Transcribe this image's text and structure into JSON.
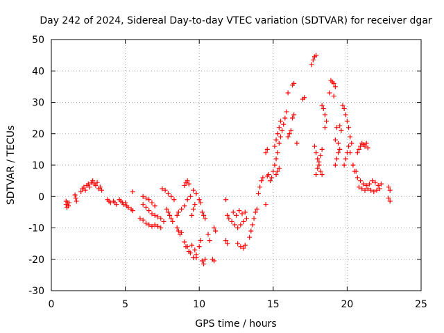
{
  "chart_data": {
    "type": "scatter",
    "title": "Day 242 of 2024, Sidereal Day-to-day VTEC variation (SDTVAR) for receiver dgar",
    "xlabel": "GPS time / hours",
    "ylabel": "SDTVAR / TECUs",
    "xlim": [
      0,
      25
    ],
    "ylim": [
      -30,
      50
    ],
    "x_ticks": [
      0,
      5,
      10,
      15,
      20,
      25
    ],
    "y_ticks": [
      -30,
      -20,
      -10,
      0,
      10,
      20,
      30,
      40,
      50
    ],
    "grid": true,
    "marker": "+",
    "marker_color": "#ff0000",
    "series": [
      {
        "name": "SDTVAR",
        "points": [
          [
            1.0,
            -1.5
          ],
          [
            1.0,
            -2.5
          ],
          [
            1.05,
            -3.5
          ],
          [
            1.1,
            -2.0
          ],
          [
            1.15,
            -3.0
          ],
          [
            1.2,
            -2.0
          ],
          [
            1.6,
            0.5
          ],
          [
            1.65,
            -0.5
          ],
          [
            1.7,
            -1.5
          ],
          [
            2.0,
            1.5
          ],
          [
            2.1,
            2.5
          ],
          [
            2.2,
            3.0
          ],
          [
            2.3,
            2.0
          ],
          [
            2.4,
            3.5
          ],
          [
            2.5,
            4.0
          ],
          [
            2.6,
            3.0
          ],
          [
            2.7,
            4.5
          ],
          [
            2.8,
            5.0
          ],
          [
            2.9,
            4.0
          ],
          [
            3.0,
            3.5
          ],
          [
            3.1,
            4.5
          ],
          [
            3.2,
            2.5
          ],
          [
            3.3,
            3.0
          ],
          [
            3.4,
            2.0
          ],
          [
            3.8,
            -1.0
          ],
          [
            3.9,
            -1.5
          ],
          [
            4.0,
            -2.0
          ],
          [
            4.2,
            -1.5
          ],
          [
            4.3,
            -2.0
          ],
          [
            4.4,
            -2.5
          ],
          [
            4.6,
            -1.0
          ],
          [
            4.7,
            -1.5
          ],
          [
            4.8,
            -2.0
          ],
          [
            4.9,
            -2.5
          ],
          [
            5.0,
            -2.0
          ],
          [
            5.1,
            -3.0
          ],
          [
            5.2,
            -3.5
          ],
          [
            5.4,
            -4.0
          ],
          [
            5.5,
            -4.5
          ],
          [
            5.5,
            1.5
          ],
          [
            6.0,
            -7.0
          ],
          [
            6.2,
            -7.5
          ],
          [
            6.4,
            -8.5
          ],
          [
            6.6,
            -9.0
          ],
          [
            6.8,
            -9.5
          ],
          [
            7.0,
            -9.0
          ],
          [
            7.2,
            -9.5
          ],
          [
            7.4,
            -10.0
          ],
          [
            6.2,
            -2.5
          ],
          [
            6.4,
            -3.5
          ],
          [
            6.6,
            -4.5
          ],
          [
            6.8,
            -5.5
          ],
          [
            7.0,
            -6.0
          ],
          [
            7.2,
            -6.5
          ],
          [
            7.4,
            -7.0
          ],
          [
            7.6,
            -8.0
          ],
          [
            6.2,
            0.0
          ],
          [
            6.4,
            -0.5
          ],
          [
            6.6,
            -1.0
          ],
          [
            6.8,
            -2.0
          ],
          [
            7.0,
            -3.0
          ],
          [
            7.5,
            2.5
          ],
          [
            7.7,
            2.0
          ],
          [
            7.9,
            1.0
          ],
          [
            8.1,
            0.0
          ],
          [
            8.3,
            -1.0
          ],
          [
            7.8,
            -4.0
          ],
          [
            7.9,
            -5.0
          ],
          [
            8.0,
            -6.0
          ],
          [
            8.1,
            -7.0
          ],
          [
            8.2,
            -8.0
          ],
          [
            8.5,
            -10.0
          ],
          [
            8.6,
            -11.0
          ],
          [
            8.7,
            -12.0
          ],
          [
            8.8,
            -11.5
          ],
          [
            9.0,
            3.5
          ],
          [
            9.1,
            4.5
          ],
          [
            9.2,
            5.0
          ],
          [
            9.3,
            4.0
          ],
          [
            8.5,
            -6.0
          ],
          [
            8.6,
            -5.0
          ],
          [
            8.8,
            -4.0
          ],
          [
            9.0,
            -3.0
          ],
          [
            9.2,
            -1.0
          ],
          [
            9.4,
            0.0
          ],
          [
            9.6,
            2.0
          ],
          [
            9.8,
            1.0
          ],
          [
            10.0,
            -1.0
          ],
          [
            10.1,
            -2.0
          ],
          [
            9.7,
            -2.5
          ],
          [
            9.6,
            -4.0
          ],
          [
            9.5,
            -6.0
          ],
          [
            9.0,
            -14.5
          ],
          [
            9.2,
            -16.0
          ],
          [
            9.4,
            -18.0
          ],
          [
            9.6,
            -19.5
          ],
          [
            9.8,
            -18.5
          ],
          [
            10.0,
            -16.0
          ],
          [
            10.1,
            -14.0
          ],
          [
            9.5,
            -15.5
          ],
          [
            9.7,
            -17.0
          ],
          [
            9.3,
            -17.5
          ],
          [
            9.1,
            -16.0
          ],
          [
            9.8,
            -19.5
          ],
          [
            10.2,
            -20.5
          ],
          [
            10.3,
            -21.5
          ],
          [
            10.4,
            -20.0
          ],
          [
            10.2,
            -5.0
          ],
          [
            10.3,
            -6.0
          ],
          [
            10.4,
            -7.0
          ],
          [
            10.6,
            -12.0
          ],
          [
            10.7,
            -14.0
          ],
          [
            10.9,
            -20.0
          ],
          [
            11.0,
            -20.5
          ],
          [
            11.0,
            -10.0
          ],
          [
            11.1,
            -11.0
          ],
          [
            11.8,
            -1.0
          ],
          [
            11.9,
            -6.0
          ],
          [
            12.0,
            -7.0
          ],
          [
            11.8,
            -14.0
          ],
          [
            11.9,
            -15.0
          ],
          [
            12.2,
            -8.0
          ],
          [
            12.4,
            -9.0
          ],
          [
            12.6,
            -10.0
          ],
          [
            12.8,
            -9.0
          ],
          [
            13.0,
            -8.0
          ],
          [
            13.2,
            -7.0
          ],
          [
            12.3,
            -5.0
          ],
          [
            12.5,
            -6.0
          ],
          [
            12.7,
            -4.5
          ],
          [
            12.9,
            -5.5
          ],
          [
            13.1,
            -5.0
          ],
          [
            12.6,
            -15.0
          ],
          [
            12.8,
            -16.0
          ],
          [
            13.0,
            -16.5
          ],
          [
            13.1,
            -15.5
          ],
          [
            13.4,
            -13.0
          ],
          [
            13.5,
            -11.0
          ],
          [
            13.6,
            -9.0
          ],
          [
            13.7,
            -7.0
          ],
          [
            13.8,
            -5.0
          ],
          [
            13.9,
            -4.0
          ],
          [
            14.0,
            1.0
          ],
          [
            14.1,
            3.0
          ],
          [
            14.2,
            5.0
          ],
          [
            14.3,
            6.0
          ],
          [
            14.5,
            -2.5
          ],
          [
            14.6,
            6.5
          ],
          [
            14.7,
            7.0
          ],
          [
            14.5,
            14.0
          ],
          [
            14.6,
            15.0
          ],
          [
            14.8,
            5.0
          ],
          [
            14.9,
            6.0
          ],
          [
            15.0,
            8.0
          ],
          [
            15.1,
            10.0
          ],
          [
            15.2,
            12.0
          ],
          [
            15.3,
            14.0
          ],
          [
            15.4,
            17.0
          ],
          [
            15.5,
            19.0
          ],
          [
            15.6,
            21.0
          ],
          [
            15.7,
            23.0
          ],
          [
            15.8,
            25.0
          ],
          [
            15.9,
            27.0
          ],
          [
            15.1,
            16.0
          ],
          [
            15.2,
            18.0
          ],
          [
            15.3,
            20.0
          ],
          [
            15.4,
            22.0
          ],
          [
            15.5,
            24.0
          ],
          [
            15.2,
            7.0
          ],
          [
            15.3,
            8.0
          ],
          [
            15.4,
            9.0
          ],
          [
            16.0,
            19.0
          ],
          [
            16.1,
            20.0
          ],
          [
            16.2,
            21.0
          ],
          [
            16.3,
            25.0
          ],
          [
            16.4,
            26.0
          ],
          [
            16.0,
            33.0
          ],
          [
            16.3,
            35.5
          ],
          [
            16.4,
            36.0
          ],
          [
            16.6,
            17.0
          ],
          [
            17.0,
            31.0
          ],
          [
            17.1,
            31.5
          ],
          [
            17.6,
            42.0
          ],
          [
            17.7,
            43.5
          ],
          [
            17.8,
            44.5
          ],
          [
            17.9,
            45.0
          ],
          [
            17.8,
            16.0
          ],
          [
            17.9,
            14.0
          ],
          [
            18.0,
            12.0
          ],
          [
            18.1,
            10.0
          ],
          [
            18.2,
            8.0
          ],
          [
            18.3,
            7.0
          ],
          [
            17.9,
            7.0
          ],
          [
            18.0,
            9.0
          ],
          [
            18.1,
            11.0
          ],
          [
            18.2,
            13.0
          ],
          [
            18.3,
            15.0
          ],
          [
            18.3,
            29.0
          ],
          [
            18.4,
            28.0
          ],
          [
            18.5,
            26.0
          ],
          [
            18.6,
            24.0
          ],
          [
            18.5,
            22.0
          ],
          [
            18.8,
            33.0
          ],
          [
            18.9,
            37.0
          ],
          [
            19.0,
            36.5
          ],
          [
            19.1,
            36.0
          ],
          [
            19.2,
            35.0
          ],
          [
            19.1,
            32.0
          ],
          [
            19.2,
            18.0
          ],
          [
            19.3,
            22.0
          ],
          [
            19.5,
            22.5
          ],
          [
            19.6,
            21.0
          ],
          [
            19.4,
            17.0
          ],
          [
            19.2,
            10.0
          ],
          [
            19.3,
            12.0
          ],
          [
            19.4,
            14.0
          ],
          [
            19.5,
            15.0
          ],
          [
            19.7,
            29.0
          ],
          [
            19.8,
            28.0
          ],
          [
            19.9,
            26.0
          ],
          [
            20.0,
            24.0
          ],
          [
            20.1,
            22.0
          ],
          [
            20.2,
            19.0
          ],
          [
            20.3,
            17.0
          ],
          [
            19.8,
            10.0
          ],
          [
            19.9,
            12.0
          ],
          [
            20.0,
            14.0
          ],
          [
            20.1,
            16.0
          ],
          [
            20.2,
            14.0
          ],
          [
            20.4,
            10.0
          ],
          [
            20.6,
            8.0
          ],
          [
            20.7,
            14.0
          ],
          [
            20.8,
            15.0
          ],
          [
            20.9,
            16.0
          ],
          [
            21.0,
            17.0
          ],
          [
            21.1,
            16.5
          ],
          [
            21.2,
            16.0
          ],
          [
            21.3,
            17.0
          ],
          [
            21.4,
            15.5
          ],
          [
            20.5,
            8.0
          ],
          [
            20.7,
            6.0
          ],
          [
            20.9,
            5.0
          ],
          [
            21.1,
            4.0
          ],
          [
            21.3,
            3.5
          ],
          [
            21.5,
            4.0
          ],
          [
            21.7,
            5.0
          ],
          [
            21.9,
            4.5
          ],
          [
            22.1,
            3.5
          ],
          [
            22.3,
            4.0
          ],
          [
            20.8,
            3.0
          ],
          [
            21.0,
            2.5
          ],
          [
            21.2,
            2.0
          ],
          [
            21.4,
            2.5
          ],
          [
            21.6,
            2.0
          ],
          [
            21.8,
            1.5
          ],
          [
            22.0,
            2.0
          ],
          [
            22.2,
            2.5
          ],
          [
            22.8,
            3.0
          ],
          [
            22.9,
            2.0
          ],
          [
            22.8,
            -0.5
          ],
          [
            22.9,
            -1.5
          ]
        ]
      }
    ]
  }
}
